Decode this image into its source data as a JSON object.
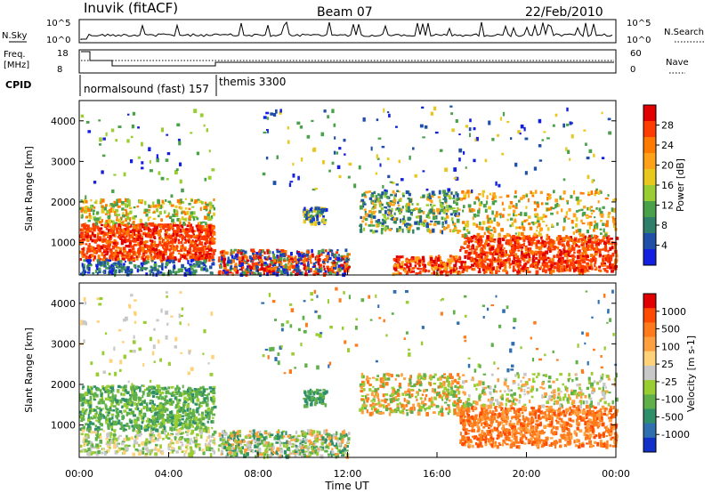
{
  "header": {
    "site": "Inuvik (fitACF)",
    "beam": "Beam 07",
    "date": "22/Feb/2010"
  },
  "strip": {
    "nsky_label": "N.Sky",
    "nsearch_label": "N.Search",
    "nsky_ticks": [
      "10^5",
      "10^0"
    ],
    "nsearch_ticks": [
      "10^5",
      "10^0"
    ],
    "freq_label": "Freq.",
    "freq_unit": "[MHz]",
    "freq_ticks": [
      "18",
      "8"
    ],
    "nave_label": "Nave",
    "nave_ticks": [
      "60",
      "0"
    ],
    "cpid_label": "CPID",
    "cpid_entries": [
      "normalsound (fast) 157",
      "themis 3300"
    ]
  },
  "chart_data": [
    {
      "type": "heatmap",
      "name": "power",
      "ylabel": "Slant Range [km]",
      "xlabel": "",
      "ylim": [
        200,
        4500
      ],
      "yticks": [
        "1000",
        "2000",
        "3000",
        "4000"
      ],
      "colorbar": {
        "label": "Power [dB]",
        "ticks": [
          "4",
          "8",
          "12",
          "16",
          "20",
          "24",
          "28"
        ],
        "colors": [
          "#1420e0",
          "#1f4fa8",
          "#2f7f6a",
          "#4aa14a",
          "#9acd32",
          "#e8c81e",
          "#ffa21a",
          "#ff7a00",
          "#ff3c00",
          "#e00000"
        ]
      }
    },
    {
      "type": "heatmap",
      "name": "velocity",
      "ylabel": "Slant Range [km]",
      "xlabel": "Time UT",
      "ylim": [
        200,
        4500
      ],
      "yticks": [
        "1000",
        "2000",
        "3000",
        "4000"
      ],
      "xticks": [
        "00:00",
        "04:00",
        "08:00",
        "12:00",
        "16:00",
        "20:00",
        "00:00"
      ],
      "colorbar": {
        "label": "Velocity [m s-1]",
        "ticks": [
          "1000",
          "500",
          "100",
          "25",
          "-25",
          "-100",
          "-500",
          "-1000"
        ],
        "colors": [
          "#1030c8",
          "#2f6fb0",
          "#2f8f6a",
          "#5fb04a",
          "#9acd32",
          "#c8c8c8",
          "#ffd27a",
          "#ffa040",
          "#ff7a1a",
          "#ff4a00",
          "#e00000"
        ]
      }
    }
  ]
}
